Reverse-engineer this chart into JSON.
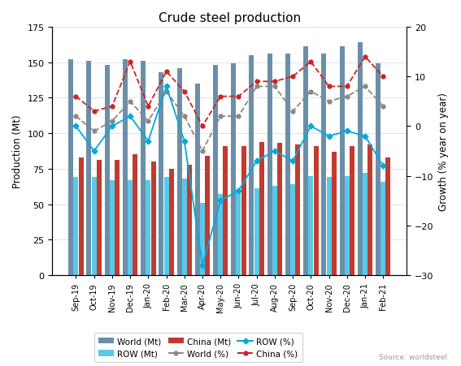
{
  "months": [
    "Sep-19",
    "Oct-19",
    "Nov-19",
    "Dec-19",
    "Jan-20",
    "Feb-20",
    "Mar-20",
    "Apr-20",
    "May-20",
    "Jun-20",
    "Jul-20",
    "Aug-20",
    "Sep-20",
    "Oct-20",
    "Nov-20",
    "Dec-20",
    "Jan-21",
    "Feb-21"
  ],
  "world_mt": [
    152,
    151,
    148,
    152,
    151,
    143,
    146,
    135,
    148,
    149,
    155,
    156,
    156,
    161,
    156,
    161,
    164,
    149
  ],
  "row_mt": [
    69,
    69,
    67,
    67,
    67,
    69,
    68,
    51,
    57,
    58,
    61,
    63,
    64,
    70,
    69,
    70,
    72,
    66
  ],
  "china_mt": [
    83,
    81,
    81,
    85,
    80,
    75,
    78,
    84,
    91,
    91,
    94,
    93,
    92,
    91,
    87,
    91,
    92,
    83
  ],
  "world_pct": [
    2,
    -1,
    1,
    5,
    1,
    7,
    2,
    -5,
    2,
    2,
    8,
    8,
    3,
    7,
    5,
    6,
    8,
    4
  ],
  "row_pct": [
    0,
    -5,
    0,
    2,
    -3,
    8,
    -3,
    -28,
    -15,
    -13,
    -7,
    -5,
    -7,
    0,
    -2,
    -1,
    -2,
    -8
  ],
  "china_pct": [
    6,
    3,
    4,
    13,
    4,
    11,
    7,
    0,
    6,
    6,
    9,
    9,
    10,
    13,
    8,
    8,
    14,
    10
  ],
  "title": "Crude steel production",
  "ylabel_left": "Production (Mt)",
  "ylabel_right": "Growth (% year on year)",
  "source_text": "Source: worldsteel",
  "ylim_left": [
    0,
    175
  ],
  "ylim_right": [
    -30,
    20
  ],
  "yticks_left": [
    0,
    25,
    50,
    75,
    100,
    125,
    150,
    175
  ],
  "yticks_right": [
    -30,
    -20,
    -10,
    0,
    10,
    20
  ],
  "bar_world_color": "#6b8fa8",
  "bar_row_color": "#5bc8e8",
  "bar_china_color": "#c13b2e",
  "line_world_color": "#888888",
  "line_row_color": "#00aadd",
  "line_china_color": "#cc2222",
  "bar_world_alpha": 1.0,
  "bar_row_alpha": 1.0,
  "bar_china_alpha": 1.0
}
